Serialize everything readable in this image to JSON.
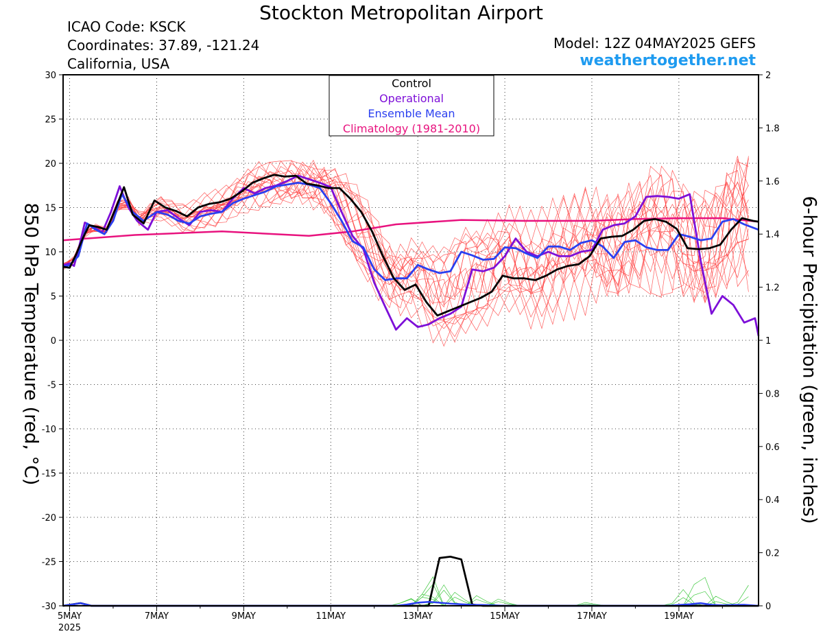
{
  "header": {
    "title": "Stockton Metropolitan Airport",
    "icao": "ICAO Code: KSCK",
    "coordinates": "Coordinates: 37.89, -121.24",
    "region": "California, USA",
    "model": "Model: 12Z 04MAY2025 GEFS",
    "site": "weathertogether.net"
  },
  "colors": {
    "members": "#ff4040",
    "control": "#000000",
    "operational": "#7d0fd8",
    "mean": "#2a3ff0",
    "climatology": "#e8127e",
    "precip": "#3ec83e",
    "site": "#1e9bf0"
  },
  "chart_data": {
    "type": "line",
    "title": "Stockton Metropolitan Airport",
    "ylabel_left": "850 hPa Temperature (red, °C)",
    "ylabel_right": "6-hour Precipitation (green, inches)",
    "x_unit": "days from 00Z 05MAY2025",
    "xlim": [
      -0.15,
      15.83
    ],
    "ylim_left": [
      -30,
      30
    ],
    "ylim_right": [
      0,
      2
    ],
    "yticks_left": [
      -30,
      -25,
      -20,
      -15,
      -10,
      -5,
      0,
      5,
      10,
      15,
      20,
      25,
      30
    ],
    "yticks_right": [
      0,
      0.2,
      0.4,
      0.6,
      0.8,
      1,
      1.2,
      1.4,
      1.6,
      1.8,
      2
    ],
    "xticks": [
      {
        "x": 0,
        "label": "5MAY",
        "sub": "2025"
      },
      {
        "x": 2,
        "label": "7MAY"
      },
      {
        "x": 4,
        "label": "9MAY"
      },
      {
        "x": 6,
        "label": "11MAY"
      },
      {
        "x": 8,
        "label": "13MAY"
      },
      {
        "x": 10,
        "label": "15MAY"
      },
      {
        "x": 12,
        "label": "17MAY"
      },
      {
        "x": 14,
        "label": "19MAY"
      }
    ],
    "grid": true,
    "legend": {
      "position": "top-center",
      "entries": [
        {
          "label": "Control",
          "key": "control"
        },
        {
          "label": "Operational",
          "key": "operational"
        },
        {
          "label": "Ensemble Mean",
          "key": "mean"
        },
        {
          "label": "Climatology (1981-2010)",
          "key": "climatology"
        }
      ]
    },
    "series": [
      {
        "key": "climatology",
        "axis": "left",
        "x": [
          -0.15,
          1.5,
          3.5,
          5.5,
          6.5,
          7.5,
          9,
          10.5,
          12,
          13,
          14,
          15,
          15.83
        ],
        "y": [
          11.3,
          11.9,
          12.3,
          11.8,
          12.3,
          13.1,
          13.6,
          13.5,
          13.5,
          13.7,
          13.8,
          13.8,
          13.4
        ]
      },
      {
        "key": "operational",
        "axis": "left",
        "x": [
          -0.15,
          0,
          0.1,
          0.2,
          0.35,
          0.55,
          0.75,
          0.95,
          1.15,
          1.35,
          1.55,
          1.8,
          2,
          2.25,
          2.5,
          2.75,
          3,
          3.25,
          3.5,
          3.75,
          4,
          4.25,
          4.5,
          4.75,
          5,
          5.25,
          5.5,
          5.75,
          6,
          6.25,
          6.5,
          6.75,
          7,
          7.25,
          7.5,
          7.75,
          8,
          8.25,
          8.5,
          8.75,
          9,
          9.25,
          9.5,
          9.75,
          10,
          10.25,
          10.5,
          10.75,
          11,
          11.25,
          11.5,
          11.75,
          12,
          12.25,
          12.5,
          12.75,
          13,
          13.25,
          13.5,
          13.75,
          14,
          14.25,
          14.5,
          14.75,
          15,
          15.25,
          15.5,
          15.75,
          15.83
        ],
        "y": [
          8.5,
          8.7,
          8.4,
          10.2,
          13.3,
          12.8,
          12.2,
          14.5,
          17.4,
          15,
          13.5,
          12.5,
          14.5,
          14.7,
          13.8,
          13,
          14.5,
          14.7,
          14.5,
          16,
          17.2,
          16.6,
          17.2,
          17.5,
          18,
          18.6,
          18.2,
          17.8,
          17.3,
          14.5,
          11.8,
          10.3,
          6.5,
          3.8,
          1.2,
          2.5,
          1.5,
          1.8,
          2.5,
          3,
          3.8,
          8,
          7.8,
          8.2,
          9.5,
          11.5,
          10,
          9.5,
          10,
          9.5,
          9.5,
          10,
          10.2,
          12.5,
          13,
          13.2,
          14,
          16.2,
          16.3,
          16.2,
          16,
          16.5,
          9,
          3,
          5,
          4,
          2,
          2.5,
          0.5
        ]
      },
      {
        "key": "mean",
        "axis": "left",
        "x": [
          -0.15,
          0,
          0.2,
          0.4,
          0.6,
          0.8,
          1,
          1.2,
          1.45,
          1.7,
          2,
          2.25,
          2.5,
          2.75,
          3,
          3.25,
          3.5,
          3.75,
          4,
          4.25,
          4.5,
          4.75,
          5,
          5.25,
          5.5,
          5.75,
          6,
          6.25,
          6.5,
          6.75,
          7,
          7.25,
          7.5,
          7.75,
          8,
          8.25,
          8.5,
          8.75,
          9,
          9.25,
          9.5,
          9.75,
          10,
          10.25,
          10.5,
          10.75,
          11,
          11.25,
          11.5,
          11.75,
          12,
          12.25,
          12.5,
          12.75,
          13,
          13.25,
          13.5,
          13.75,
          14,
          14.25,
          14.5,
          14.75,
          15,
          15.25,
          15.5,
          15.83
        ],
        "y": [
          8.3,
          8.5,
          9.5,
          13.2,
          12.5,
          12,
          13.5,
          16.5,
          14.5,
          13.5,
          14.5,
          14.2,
          13.5,
          13.2,
          14,
          14.3,
          14.5,
          15.5,
          16,
          16.4,
          16.8,
          17.4,
          17.6,
          17.8,
          17.6,
          17.2,
          15.5,
          13.5,
          11.2,
          10.5,
          8,
          6.8,
          7,
          7,
          8.5,
          8,
          7.6,
          7.8,
          10,
          9.6,
          9.1,
          9.2,
          10.5,
          10.4,
          9.8,
          9.3,
          10.6,
          10.6,
          10.2,
          11,
          11.3,
          10.6,
          9.3,
          11.1,
          11.3,
          10.5,
          10.2,
          10.2,
          12,
          11.7,
          11.3,
          11.5,
          13.4,
          13.7,
          13.1,
          12.5
        ]
      },
      {
        "key": "control",
        "axis": "left",
        "x": [
          -0.15,
          0,
          0.15,
          0.3,
          0.45,
          0.65,
          0.85,
          1.05,
          1.25,
          1.45,
          1.7,
          1.95,
          2.2,
          2.45,
          2.7,
          2.95,
          3.2,
          3.45,
          3.7,
          3.95,
          4.2,
          4.45,
          4.7,
          4.95,
          5.2,
          5.45,
          5.7,
          5.95,
          6.2,
          6.45,
          6.7,
          6.95,
          7.2,
          7.45,
          7.7,
          7.95,
          8.2,
          8.45,
          8.7,
          8.95,
          9.2,
          9.45,
          9.7,
          9.95,
          10.2,
          10.45,
          10.7,
          10.95,
          11.2,
          11.45,
          11.7,
          11.95,
          12.2,
          12.45,
          12.7,
          12.95,
          13.2,
          13.45,
          13.7,
          13.95,
          14.2,
          14.45,
          14.7,
          14.95,
          15.2,
          15.45,
          15.7,
          15.83
        ],
        "y": [
          8.3,
          8.2,
          9.7,
          11.5,
          13,
          12.8,
          12.5,
          14.8,
          17.3,
          14.2,
          13.2,
          15.8,
          15,
          14.6,
          14,
          15,
          15.4,
          15.6,
          16,
          16.8,
          17.8,
          18.3,
          18.7,
          18.5,
          18.6,
          17.7,
          17.5,
          17.2,
          17.2,
          16,
          14.5,
          12.3,
          9.5,
          7,
          5.7,
          6.3,
          4.3,
          2.8,
          3.3,
          3.8,
          4.3,
          4.8,
          5.5,
          7.3,
          7,
          7,
          6.8,
          7.3,
          8,
          8.4,
          8.6,
          9.5,
          11.5,
          11.7,
          11.8,
          12.5,
          13.5,
          13.7,
          13.4,
          12.6,
          10.4,
          10.3,
          10.4,
          10.8,
          12.5,
          13.8,
          13.5,
          13.4
        ]
      },
      {
        "key": "precip_control",
        "axis": "right",
        "x": [
          -0.15,
          0.25,
          0.5,
          0.75,
          7.5,
          8,
          8.25,
          8.5,
          8.75,
          9,
          9.25,
          9.5,
          15.83
        ],
        "y": [
          0,
          0.01,
          0,
          0,
          0,
          0,
          0,
          0.18,
          0.185,
          0.175,
          0.005,
          0,
          0
        ]
      },
      {
        "key": "precip_mean",
        "axis": "right",
        "x": [
          -0.15,
          0.25,
          0.5,
          7.5,
          7.75,
          8,
          8.25,
          8.5,
          8.75,
          9,
          9.25,
          9.5,
          9.75,
          10,
          13.75,
          14,
          14.25,
          14.5,
          14.75,
          15,
          15.25,
          15.5,
          15.83
        ],
        "y": [
          0,
          0.01,
          0,
          0,
          0.005,
          0.012,
          0.015,
          0.012,
          0.008,
          0.006,
          0.004,
          0.003,
          0.002,
          0,
          0,
          0.003,
          0.006,
          0.01,
          0.004,
          0.002,
          0.003,
          0.004,
          0
        ]
      }
    ]
  }
}
